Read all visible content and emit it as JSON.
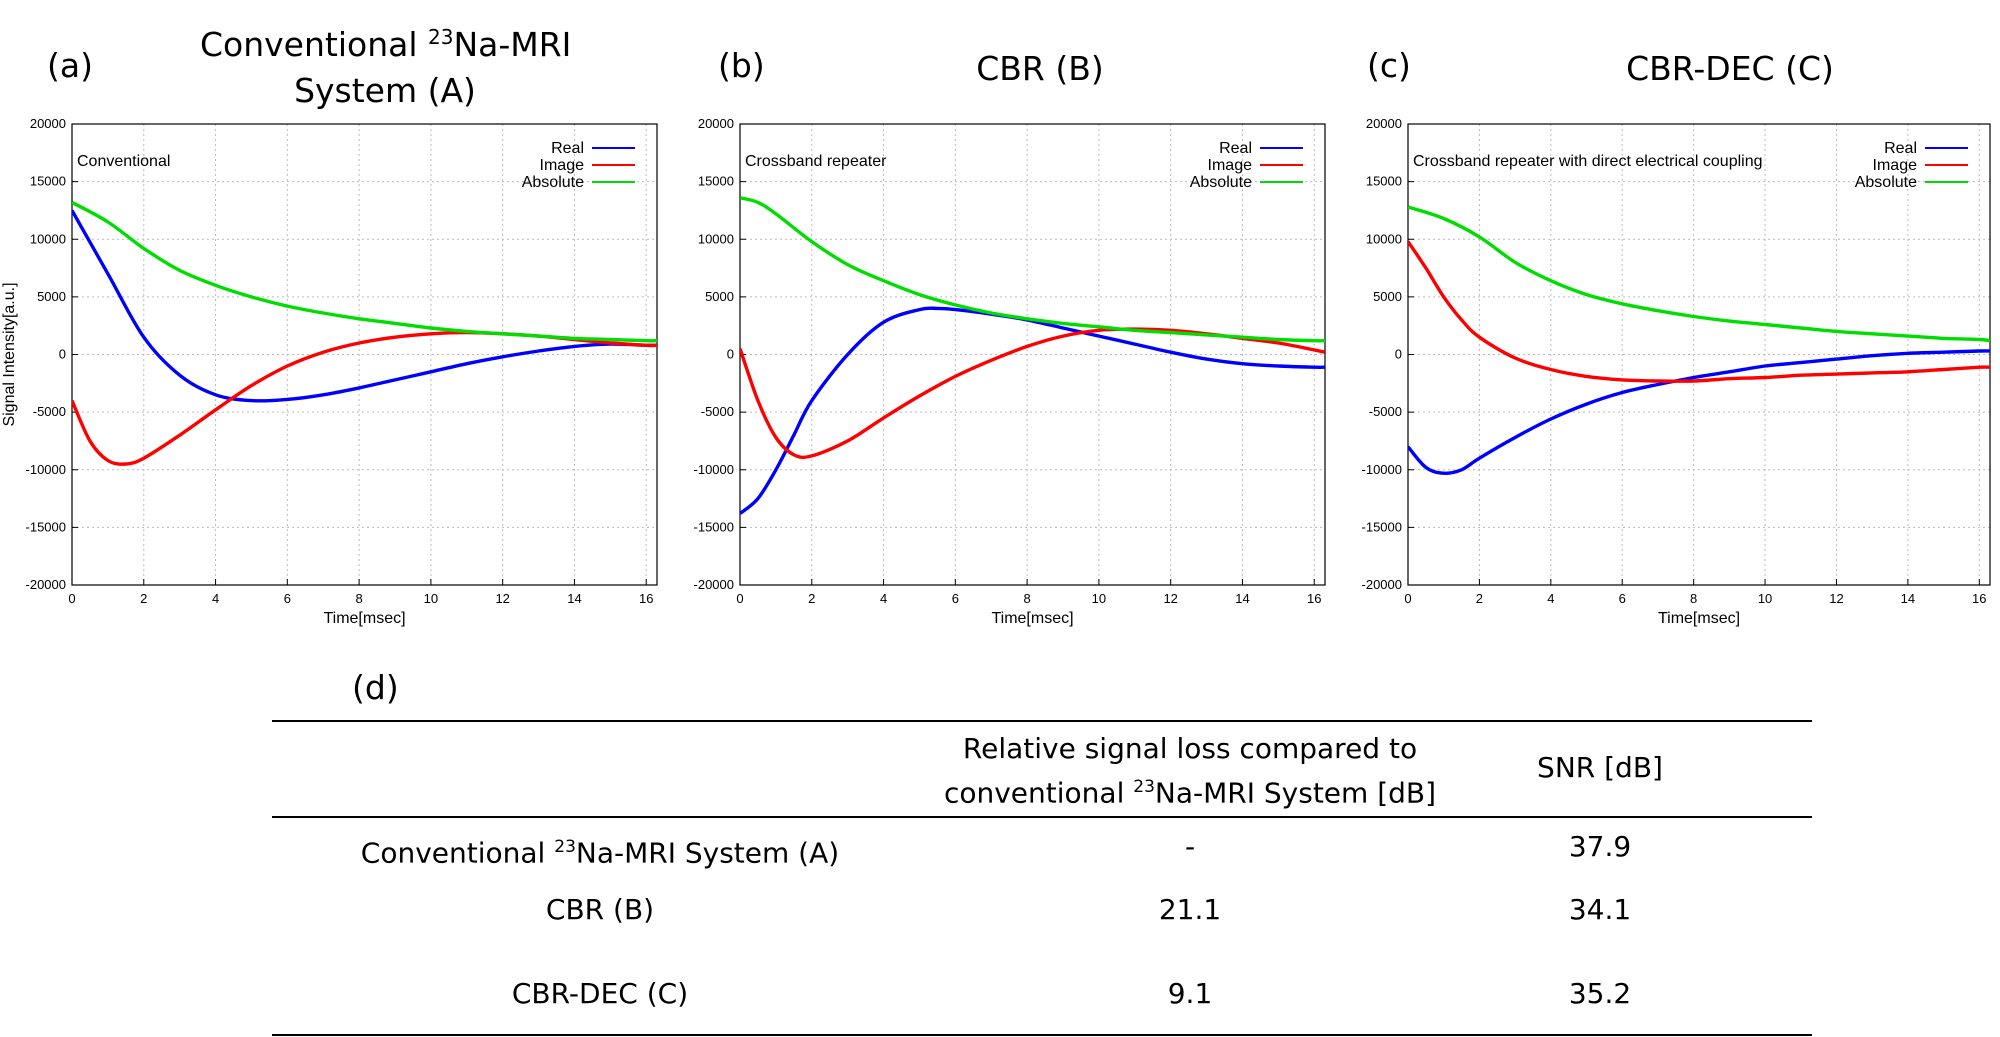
{
  "panels": [
    {
      "letter": "(a)",
      "title_line1_pre": "Conventional ",
      "title_line1_sup": "23",
      "title_line1_post": "Na-MRI",
      "title_line2": "System (A)"
    },
    {
      "letter": "(b)",
      "title_line1_pre": "CBR (B)",
      "title_line1_sup": "",
      "title_line1_post": "",
      "title_line2": ""
    },
    {
      "letter": "(c)",
      "title_line1_pre": "CBR-DEC (C)",
      "title_line1_sup": "",
      "title_line1_post": "",
      "title_line2": ""
    }
  ],
  "chart_data": [
    {
      "type": "line",
      "annotation": "Conventional",
      "xlabel": "Time[msec]",
      "ylabel": "Signal Intensity[a.u.]",
      "xlim": [
        0,
        16.3
      ],
      "ylim": [
        -20000,
        20000
      ],
      "xticks": [
        0,
        2,
        4,
        6,
        8,
        10,
        12,
        14,
        16
      ],
      "yticks": [
        -20000,
        -15000,
        -10000,
        -5000,
        0,
        5000,
        10000,
        15000,
        20000
      ],
      "grid": true,
      "legend_position": "top-right",
      "series": [
        {
          "name": "Real",
          "color": "#0000ff",
          "x": [
            0,
            1,
            2,
            3,
            4,
            5,
            6,
            7,
            8,
            9,
            10,
            11,
            12,
            13,
            14,
            15,
            16,
            16.3
          ],
          "y": [
            12500,
            7000,
            1500,
            -1800,
            -3500,
            -4000,
            -3900,
            -3500,
            -2900,
            -2200,
            -1500,
            -800,
            -200,
            300,
            700,
            900,
            800,
            800
          ]
        },
        {
          "name": "Image",
          "color": "#ff0000",
          "x": [
            0,
            0.5,
            1,
            1.5,
            2,
            3,
            4,
            5,
            6,
            7,
            8,
            9,
            10,
            11,
            12,
            13,
            14,
            15,
            16,
            16.3
          ],
          "y": [
            -4000,
            -7500,
            -9200,
            -9500,
            -9000,
            -7000,
            -4800,
            -2700,
            -1000,
            200,
            1000,
            1500,
            1800,
            1900,
            1800,
            1600,
            1300,
            1000,
            800,
            800
          ]
        },
        {
          "name": "Absolute",
          "color": "#00dd00",
          "x": [
            0,
            1,
            2,
            3,
            4,
            5,
            6,
            7,
            8,
            9,
            10,
            11,
            12,
            13,
            14,
            15,
            16,
            16.3
          ],
          "y": [
            13200,
            11500,
            9200,
            7300,
            6000,
            5000,
            4200,
            3600,
            3100,
            2700,
            2300,
            2000,
            1800,
            1600,
            1400,
            1300,
            1200,
            1200
          ]
        }
      ]
    },
    {
      "type": "line",
      "annotation": "Crossband repeater",
      "xlabel": "Time[msec]",
      "ylabel": "",
      "xlim": [
        0,
        16.3
      ],
      "ylim": [
        -20000,
        20000
      ],
      "xticks": [
        0,
        2,
        4,
        6,
        8,
        10,
        12,
        14,
        16
      ],
      "yticks": [
        -20000,
        -15000,
        -10000,
        -5000,
        0,
        5000,
        10000,
        15000,
        20000
      ],
      "grid": true,
      "legend_position": "top-right",
      "series": [
        {
          "name": "Real",
          "color": "#0000ff",
          "x": [
            0,
            0.5,
            1,
            1.5,
            2,
            3,
            4,
            5,
            5.5,
            6,
            7,
            8,
            9,
            10,
            11,
            12,
            13,
            14,
            15,
            16,
            16.3
          ],
          "y": [
            -13800,
            -12500,
            -10000,
            -7000,
            -4000,
            0,
            2800,
            3900,
            4000,
            3900,
            3500,
            3000,
            2300,
            1600,
            900,
            200,
            -400,
            -800,
            -1000,
            -1100,
            -1100
          ]
        },
        {
          "name": "Image",
          "color": "#ff0000",
          "x": [
            0,
            0.5,
            1,
            1.5,
            2,
            3,
            4,
            5,
            6,
            7,
            8,
            9,
            10,
            11,
            12,
            13,
            14,
            15,
            16,
            16.3
          ],
          "y": [
            500,
            -4000,
            -7200,
            -8700,
            -8800,
            -7500,
            -5500,
            -3600,
            -1900,
            -500,
            700,
            1600,
            2100,
            2200,
            2100,
            1800,
            1400,
            1000,
            400,
            200
          ]
        },
        {
          "name": "Absolute",
          "color": "#00dd00",
          "x": [
            0,
            0.5,
            1,
            2,
            3,
            4,
            5,
            6,
            7,
            8,
            9,
            10,
            11,
            12,
            13,
            14,
            15,
            16,
            16.3
          ],
          "y": [
            13600,
            13200,
            12200,
            9800,
            7800,
            6400,
            5200,
            4300,
            3600,
            3100,
            2700,
            2400,
            2100,
            1900,
            1700,
            1500,
            1300,
            1200,
            1200
          ]
        }
      ]
    },
    {
      "type": "line",
      "annotation": "Crossband repeater with direct electrical coupling",
      "xlabel": "Time[msec]",
      "ylabel": "",
      "xlim": [
        0,
        16.3
      ],
      "ylim": [
        -20000,
        20000
      ],
      "xticks": [
        0,
        2,
        4,
        6,
        8,
        10,
        12,
        14,
        16
      ],
      "yticks": [
        -20000,
        -15000,
        -10000,
        -5000,
        0,
        5000,
        10000,
        15000,
        20000
      ],
      "grid": true,
      "legend_position": "top-right",
      "series": [
        {
          "name": "Real",
          "color": "#0000ff",
          "x": [
            0,
            0.5,
            1,
            1.5,
            2,
            3,
            4,
            5,
            6,
            7,
            8,
            9,
            10,
            11,
            12,
            13,
            14,
            15,
            16,
            16.3
          ],
          "y": [
            -8000,
            -9800,
            -10300,
            -10000,
            -9000,
            -7200,
            -5600,
            -4300,
            -3300,
            -2600,
            -2000,
            -1500,
            -1000,
            -700,
            -400,
            -100,
            100,
            200,
            300,
            300
          ]
        },
        {
          "name": "Image",
          "color": "#ff0000",
          "x": [
            0,
            0.5,
            1,
            1.5,
            2,
            3,
            4,
            5,
            6,
            7,
            8,
            9,
            10,
            11,
            12,
            13,
            14,
            15,
            16,
            16.3
          ],
          "y": [
            9800,
            7500,
            5000,
            3000,
            1500,
            -300,
            -1300,
            -1900,
            -2200,
            -2300,
            -2300,
            -2100,
            -2000,
            -1800,
            -1700,
            -1600,
            -1500,
            -1300,
            -1100,
            -1100
          ]
        },
        {
          "name": "Absolute",
          "color": "#00dd00",
          "x": [
            0,
            1,
            2,
            3,
            4,
            5,
            6,
            7,
            8,
            9,
            10,
            11,
            12,
            13,
            14,
            15,
            16,
            16.3
          ],
          "y": [
            12800,
            11800,
            10200,
            8000,
            6400,
            5200,
            4400,
            3800,
            3300,
            2900,
            2600,
            2300,
            2000,
            1800,
            1600,
            1400,
            1300,
            1200
          ]
        }
      ]
    }
  ],
  "table": {
    "letter": "(d)",
    "header_col2_line1": "Relative signal loss compared to",
    "header_col2_line2_pre": "conventional  ",
    "header_col2_line2_sup": "23",
    "header_col2_line2_post": "Na-MRI System [dB]",
    "header_col3": "SNR [dB]",
    "rows": [
      {
        "label_pre": "Conventional ",
        "label_sup": "23",
        "label_post": "Na-MRI System (A)",
        "loss": "-",
        "snr": "37.9"
      },
      {
        "label_pre": "CBR (B)",
        "label_sup": "",
        "label_post": "",
        "loss": "21.1",
        "snr": "34.1"
      },
      {
        "label_pre": "CBR-DEC (C)",
        "label_sup": "",
        "label_post": "",
        "loss": "9.1",
        "snr": "35.2"
      }
    ]
  }
}
